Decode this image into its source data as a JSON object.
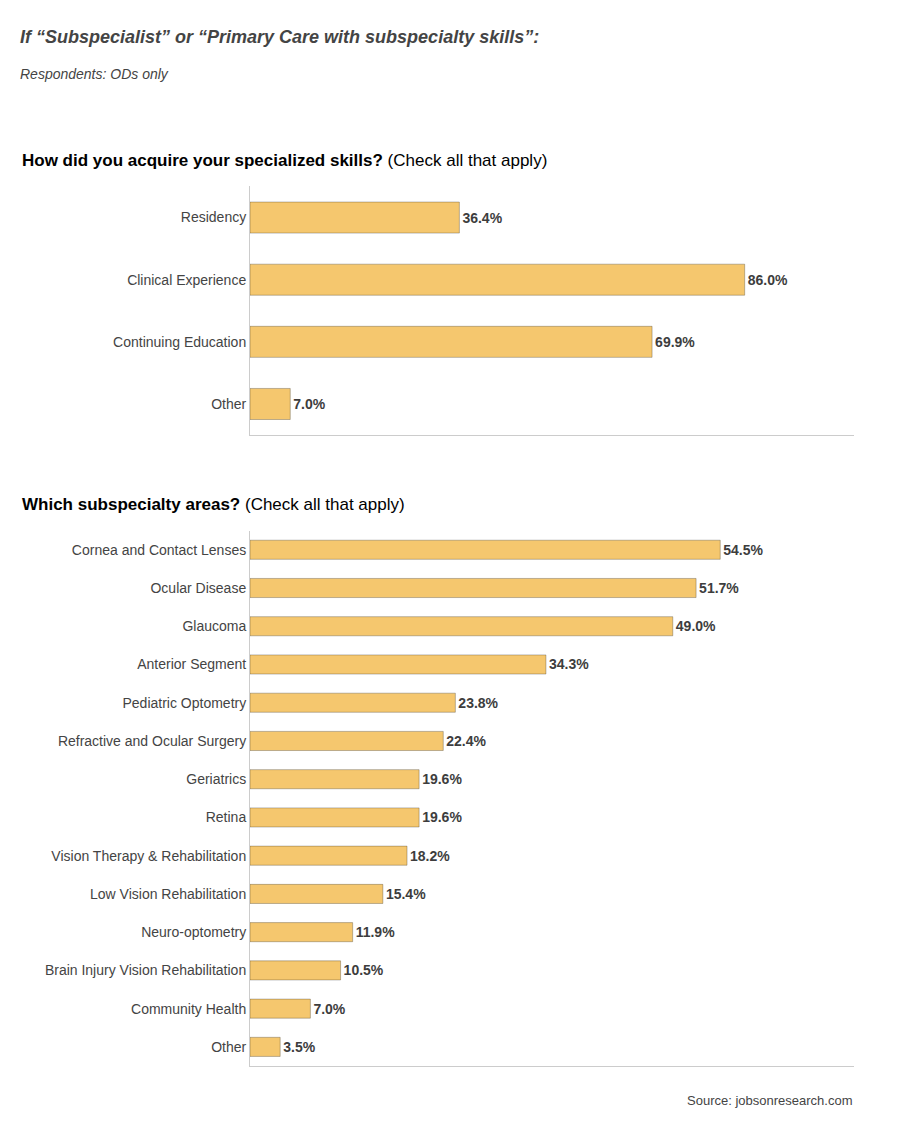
{
  "title": "If “Subspecialist” or “Primary Care with subspecialty skills”:",
  "subtitle": "Respondents: ODs only",
  "annotations": [
    "Source: jobsonresearch.com"
  ],
  "chart_data": [
    {
      "type": "bar",
      "orientation": "horizontal",
      "title": "How did you acquire your specialized skills?",
      "subtitle": "(Check all that apply)",
      "categories": [
        "Residency",
        "Clinical Experience",
        "Continuing Education",
        "Other"
      ],
      "values": [
        36.4,
        86.0,
        69.9,
        7.0
      ],
      "value_labels": [
        "36.4%",
        "86.0%",
        "69.9%",
        "7.0%"
      ],
      "color": "#F5C76E",
      "xlim": [
        0,
        105
      ],
      "xticks": [],
      "grid": false,
      "data_labels": true,
      "tick_labels": "y"
    },
    {
      "type": "bar",
      "orientation": "horizontal",
      "title": "Which subspecialty areas?",
      "subtitle": "(Check all that apply)",
      "categories": [
        "Cornea and Contact Lenses",
        "Ocular Disease",
        "Glaucoma",
        "Anterior Segment",
        "Pediatric Optometry",
        "Refractive and Ocular Surgery",
        "Geriatrics",
        "Retina",
        "Vision Therapy & Rehabilitation",
        "Low Vision Rehabilitation",
        "Neuro-optometry",
        "Brain Injury Vision Rehabilitation",
        "Community Health",
        "Other"
      ],
      "values": [
        54.5,
        51.7,
        49.0,
        34.3,
        23.8,
        22.4,
        19.6,
        19.6,
        18.2,
        15.4,
        11.9,
        10.5,
        7.0,
        3.5
      ],
      "value_labels": [
        "54.5%",
        "51.7%",
        "49.0%",
        "34.3%",
        "23.8%",
        "22.4%",
        "19.6%",
        "19.6%",
        "18.2%",
        "15.4%",
        "11.9%",
        "10.5%",
        "7.0%",
        "3.5%"
      ],
      "color": "#F5C76E",
      "xlim": [
        0,
        70
      ],
      "xticks": [],
      "grid": false,
      "data_labels": true,
      "tick_labels": "y"
    }
  ]
}
